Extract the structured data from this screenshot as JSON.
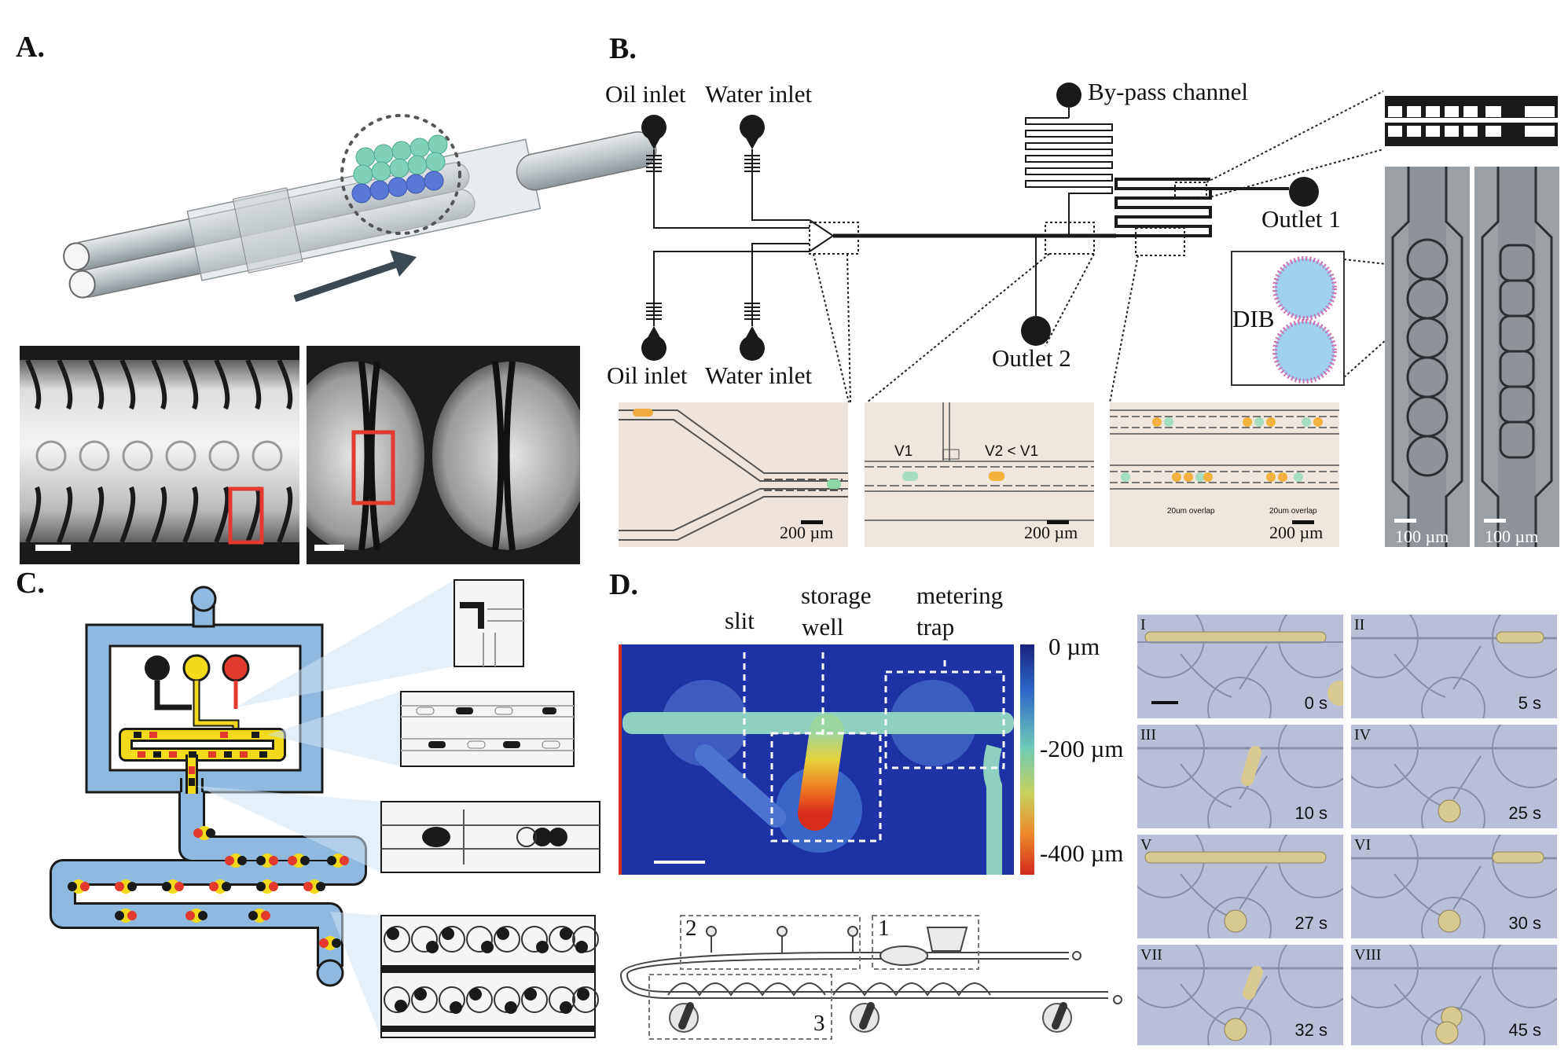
{
  "panels": {
    "A": {
      "letter": "A."
    },
    "B": {
      "letter": "B.",
      "labels": {
        "oil_inlet_top": "Oil inlet",
        "water_inlet_top": "Water inlet",
        "oil_inlet_bottom": "Oil inlet",
        "water_inlet_bottom": "Water inlet",
        "bypass": "By-pass channel",
        "outlet1": "Outlet 1",
        "outlet2": "Outlet 2",
        "dib": "DIB",
        "v1": "V1",
        "v2": "V2 < V1",
        "overlap1": "20um overlap",
        "overlap2": "20um overlap"
      },
      "scalebars": [
        "200 µm",
        "200 µm",
        "200 µm",
        "100 µm",
        "100 µm"
      ]
    },
    "C": {
      "letter": "C."
    },
    "D": {
      "letter": "D.",
      "labels": {
        "slit": "slit",
        "storage_well": "storage\nwell",
        "storage_line1": "storage",
        "storage_line2": "well",
        "metering_line1": "metering",
        "metering_line2": "trap"
      },
      "colorbar_ticks": [
        "0 µm",
        "-200 µm",
        "-400 µm"
      ],
      "schematic_numbers": [
        "2",
        "1",
        "3"
      ],
      "frames": [
        {
          "roman": "I",
          "time": "0 s"
        },
        {
          "roman": "II",
          "time": "5 s"
        },
        {
          "roman": "III",
          "time": "10 s"
        },
        {
          "roman": "IV",
          "time": "25 s"
        },
        {
          "roman": "V",
          "time": "27 s"
        },
        {
          "roman": "VI",
          "time": "30 s"
        },
        {
          "roman": "VII",
          "time": "32 s"
        },
        {
          "roman": "VIII",
          "time": "45 s"
        }
      ]
    }
  },
  "colors": {
    "channel_blue": "#8fb9df",
    "yellow": "#f2d91c",
    "red": "#e33a2e",
    "heat_blue": "#1f3aa8",
    "frame_bg": "#b9bfd6"
  }
}
